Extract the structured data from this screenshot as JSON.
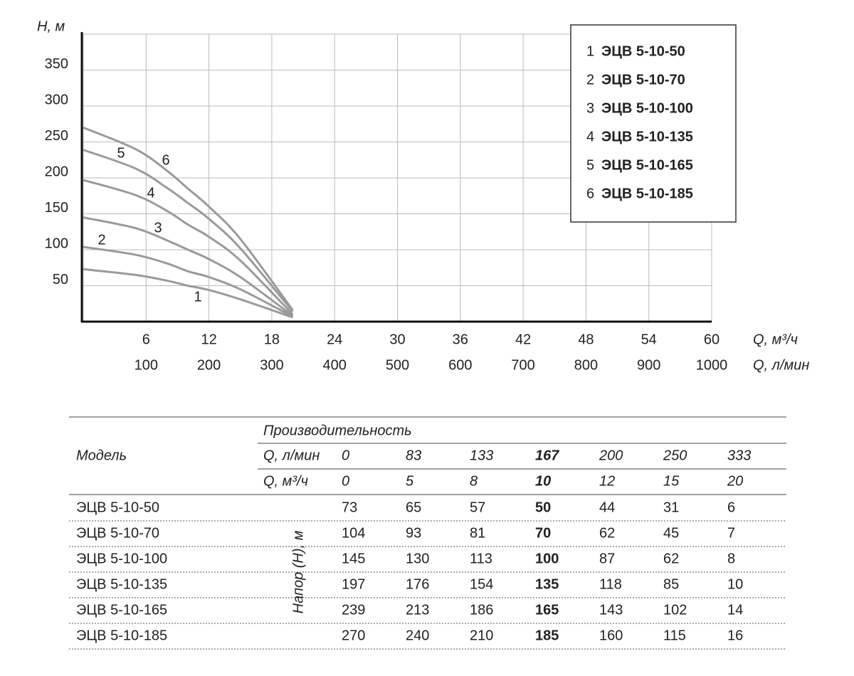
{
  "chart_data": {
    "type": "line",
    "y_label": "Н, м",
    "x_label": "Q, м³/ч",
    "x2_label": "Q, л/мин",
    "x": [
      0,
      5,
      8,
      10,
      12,
      15,
      20
    ],
    "series": [
      {
        "label": "1",
        "name": "ЭЦВ 5-10-50",
        "color": "#9a9a9a",
        "values": [
          73,
          65,
          57,
          50,
          44,
          31,
          6
        ]
      },
      {
        "label": "2",
        "name": "ЭЦВ 5-10-70",
        "color": "#9a9a9a",
        "values": [
          104,
          93,
          81,
          70,
          62,
          45,
          7
        ]
      },
      {
        "label": "3",
        "name": "ЭЦВ 5-10-100",
        "color": "#9a9a9a",
        "values": [
          145,
          130,
          113,
          100,
          87,
          62,
          8
        ]
      },
      {
        "label": "4",
        "name": "ЭЦВ 5-10-135",
        "color": "#9a9a9a",
        "values": [
          197,
          176,
          154,
          135,
          118,
          85,
          10
        ]
      },
      {
        "label": "5",
        "name": "ЭЦВ 5-10-165",
        "color": "#9a9a9a",
        "values": [
          239,
          213,
          186,
          165,
          143,
          102,
          14
        ]
      },
      {
        "label": "6",
        "name": "ЭЦВ 5-10-185",
        "color": "#9a9a9a",
        "values": [
          270,
          240,
          210,
          185,
          160,
          115,
          16
        ]
      }
    ],
    "xlim": [
      0,
      60
    ],
    "xticks": [
      6,
      12,
      18,
      24,
      30,
      36,
      42,
      48,
      54,
      60
    ],
    "x2lim": [
      0,
      1000
    ],
    "x2ticks": [
      100,
      200,
      300,
      400,
      500,
      600,
      700,
      800,
      900,
      1000
    ],
    "ylim": [
      0,
      400
    ],
    "yticks": [
      50,
      100,
      150,
      200,
      250,
      300,
      350
    ],
    "grid": true,
    "legend": "top-right"
  },
  "table": {
    "group_header": "Производительность",
    "model_header": "Модель",
    "head_label": "Напор (Н), м",
    "flow_rows": [
      {
        "label": "Q, л/мин",
        "values": [
          0,
          83,
          133,
          167,
          200,
          250,
          333
        ]
      },
      {
        "label": "Q, м³/ч",
        "values": [
          0,
          5,
          8,
          10,
          12,
          15,
          20
        ]
      }
    ],
    "rows": [
      {
        "model": "ЭЦВ 5-10-50",
        "values": [
          73,
          65,
          57,
          50,
          44,
          31,
          6
        ]
      },
      {
        "model": "ЭЦВ 5-10-70",
        "values": [
          104,
          93,
          81,
          70,
          62,
          45,
          7
        ]
      },
      {
        "model": "ЭЦВ 5-10-100",
        "values": [
          145,
          130,
          113,
          100,
          87,
          62,
          8
        ]
      },
      {
        "model": "ЭЦВ 5-10-135",
        "values": [
          197,
          176,
          154,
          135,
          118,
          85,
          10
        ]
      },
      {
        "model": "ЭЦВ 5-10-165",
        "values": [
          239,
          213,
          186,
          165,
          143,
          102,
          14
        ]
      },
      {
        "model": "ЭЦВ 5-10-185",
        "values": [
          270,
          240,
          210,
          185,
          160,
          115,
          16
        ]
      }
    ]
  }
}
